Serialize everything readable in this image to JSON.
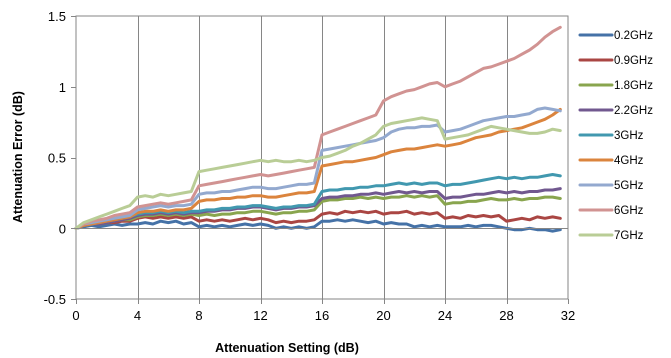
{
  "chart_data": {
    "type": "line",
    "xlabel": "Attenuation Setting (dB)",
    "ylabel": "Attenuation Error (dB)",
    "xlim": [
      0,
      32
    ],
    "ylim": [
      -0.5,
      1.5
    ],
    "xticks": [
      0,
      4,
      8,
      12,
      16,
      20,
      24,
      28,
      32
    ],
    "yticks": [
      -0.5,
      0,
      0.5,
      1,
      1.5
    ],
    "ytick_labels": [
      "-0.5",
      "0",
      "0.5",
      "1",
      "1.5"
    ],
    "grid": "vertical major gridlines",
    "legend": "right",
    "x": [
      0,
      0.5,
      1,
      1.5,
      2,
      2.5,
      3,
      3.5,
      4,
      4.5,
      5,
      5.5,
      6,
      6.5,
      7,
      7.5,
      8,
      8.5,
      9,
      9.5,
      10,
      10.5,
      11,
      11.5,
      12,
      12.5,
      13,
      13.5,
      14,
      14.5,
      15,
      15.5,
      16,
      16.5,
      17,
      17.5,
      18,
      18.5,
      19,
      19.5,
      20,
      20.5,
      21,
      21.5,
      22,
      22.5,
      23,
      23.5,
      24,
      24.5,
      25,
      25.5,
      26,
      26.5,
      27,
      27.5,
      28,
      28.5,
      29,
      29.5,
      30,
      30.5,
      31,
      31.5
    ],
    "series": [
      {
        "name": "0.2GHz",
        "color": "#4572A7",
        "values": [
          0,
          0.01,
          0.02,
          0.01,
          0.02,
          0.03,
          0.02,
          0.03,
          0.03,
          0.04,
          0.03,
          0.05,
          0.04,
          0.05,
          0.03,
          0.04,
          0.01,
          0.02,
          0.01,
          0.02,
          0.01,
          0.02,
          0.03,
          0.02,
          0.03,
          0.02,
          0,
          0.01,
          0,
          0.01,
          0,
          0.01,
          0.05,
          0.05,
          0.06,
          0.05,
          0.06,
          0.05,
          0.04,
          0.05,
          0.03,
          0.04,
          0.03,
          0.03,
          0.01,
          0.02,
          0.01,
          0.02,
          0.01,
          0.01,
          0.01,
          0.02,
          0.01,
          0.02,
          0.02,
          0.01,
          0,
          -0.01,
          -0.01,
          0,
          -0.01,
          -0.01,
          -0.02,
          -0.01
        ]
      },
      {
        "name": "0.9GHz",
        "color": "#AA4643",
        "values": [
          0,
          0.02,
          0.03,
          0.03,
          0.04,
          0.04,
          0.05,
          0.05,
          0.07,
          0.08,
          0.07,
          0.08,
          0.07,
          0.08,
          0.07,
          0.08,
          0.05,
          0.06,
          0.05,
          0.06,
          0.05,
          0.06,
          0.07,
          0.06,
          0.07,
          0.06,
          0.04,
          0.05,
          0.04,
          0.05,
          0.05,
          0.06,
          0.1,
          0.11,
          0.1,
          0.12,
          0.11,
          0.12,
          0.11,
          0.12,
          0.1,
          0.11,
          0.11,
          0.12,
          0.1,
          0.11,
          0.1,
          0.11,
          0.07,
          0.08,
          0.07,
          0.09,
          0.08,
          0.09,
          0.08,
          0.09,
          0.05,
          0.06,
          0.07,
          0.06,
          0.08,
          0.07,
          0.08,
          0.07
        ]
      },
      {
        "name": "1.8GHz",
        "color": "#89A54E",
        "values": [
          0,
          0.02,
          0.03,
          0.03,
          0.04,
          0.05,
          0.06,
          0.06,
          0.08,
          0.09,
          0.09,
          0.1,
          0.09,
          0.1,
          0.09,
          0.1,
          0.09,
          0.1,
          0.09,
          0.1,
          0.1,
          0.11,
          0.11,
          0.12,
          0.12,
          0.11,
          0.1,
          0.11,
          0.11,
          0.12,
          0.12,
          0.13,
          0.19,
          0.2,
          0.2,
          0.21,
          0.21,
          0.22,
          0.21,
          0.22,
          0.21,
          0.22,
          0.22,
          0.23,
          0.22,
          0.23,
          0.22,
          0.23,
          0.17,
          0.18,
          0.18,
          0.19,
          0.19,
          0.2,
          0.21,
          0.2,
          0.2,
          0.21,
          0.2,
          0.21,
          0.21,
          0.22,
          0.22,
          0.21
        ]
      },
      {
        "name": "2.2GHz",
        "color": "#71588F",
        "values": [
          0,
          0.02,
          0.03,
          0.03,
          0.04,
          0.05,
          0.06,
          0.07,
          0.09,
          0.1,
          0.1,
          0.11,
          0.1,
          0.11,
          0.1,
          0.11,
          0.11,
          0.12,
          0.12,
          0.13,
          0.13,
          0.14,
          0.14,
          0.15,
          0.15,
          0.14,
          0.13,
          0.14,
          0.14,
          0.15,
          0.15,
          0.16,
          0.21,
          0.22,
          0.22,
          0.23,
          0.23,
          0.24,
          0.24,
          0.25,
          0.24,
          0.25,
          0.26,
          0.25,
          0.26,
          0.25,
          0.26,
          0.26,
          0.21,
          0.22,
          0.22,
          0.23,
          0.24,
          0.24,
          0.25,
          0.26,
          0.25,
          0.26,
          0.25,
          0.26,
          0.26,
          0.27,
          0.27,
          0.28
        ]
      },
      {
        "name": "3GHz",
        "color": "#4198AF",
        "values": [
          0,
          0.02,
          0.03,
          0.04,
          0.05,
          0.06,
          0.07,
          0.08,
          0.1,
          0.11,
          0.11,
          0.12,
          0.11,
          0.12,
          0.11,
          0.12,
          0.12,
          0.13,
          0.13,
          0.14,
          0.14,
          0.15,
          0.15,
          0.16,
          0.16,
          0.15,
          0.14,
          0.15,
          0.15,
          0.16,
          0.16,
          0.17,
          0.26,
          0.27,
          0.27,
          0.28,
          0.28,
          0.29,
          0.29,
          0.3,
          0.3,
          0.31,
          0.32,
          0.31,
          0.32,
          0.31,
          0.32,
          0.32,
          0.3,
          0.31,
          0.31,
          0.32,
          0.33,
          0.34,
          0.35,
          0.36,
          0.35,
          0.36,
          0.35,
          0.36,
          0.36,
          0.37,
          0.38,
          0.37
        ]
      },
      {
        "name": "4GHz",
        "color": "#DB843D",
        "values": [
          0,
          0.02,
          0.03,
          0.04,
          0.05,
          0.06,
          0.07,
          0.08,
          0.11,
          0.12,
          0.12,
          0.13,
          0.12,
          0.13,
          0.13,
          0.14,
          0.19,
          0.2,
          0.2,
          0.21,
          0.21,
          0.22,
          0.22,
          0.23,
          0.23,
          0.22,
          0.22,
          0.23,
          0.24,
          0.25,
          0.25,
          0.26,
          0.44,
          0.45,
          0.46,
          0.47,
          0.47,
          0.48,
          0.49,
          0.5,
          0.52,
          0.54,
          0.55,
          0.56,
          0.56,
          0.57,
          0.58,
          0.59,
          0.58,
          0.59,
          0.6,
          0.62,
          0.64,
          0.65,
          0.66,
          0.68,
          0.69,
          0.7,
          0.71,
          0.73,
          0.75,
          0.77,
          0.8,
          0.84
        ]
      },
      {
        "name": "5GHz",
        "color": "#93A9CF",
        "values": [
          0,
          0.03,
          0.04,
          0.05,
          0.06,
          0.07,
          0.08,
          0.09,
          0.13,
          0.14,
          0.15,
          0.16,
          0.15,
          0.16,
          0.16,
          0.17,
          0.24,
          0.25,
          0.25,
          0.26,
          0.26,
          0.27,
          0.28,
          0.29,
          0.29,
          0.28,
          0.28,
          0.29,
          0.3,
          0.31,
          0.31,
          0.32,
          0.55,
          0.56,
          0.57,
          0.58,
          0.59,
          0.6,
          0.61,
          0.62,
          0.64,
          0.68,
          0.7,
          0.71,
          0.71,
          0.72,
          0.72,
          0.73,
          0.68,
          0.69,
          0.7,
          0.72,
          0.74,
          0.76,
          0.77,
          0.78,
          0.79,
          0.79,
          0.8,
          0.81,
          0.84,
          0.85,
          0.84,
          0.83
        ]
      },
      {
        "name": "6GHz",
        "color": "#D19392",
        "values": [
          0,
          0.03,
          0.05,
          0.06,
          0.07,
          0.09,
          0.1,
          0.11,
          0.15,
          0.16,
          0.17,
          0.18,
          0.17,
          0.18,
          0.19,
          0.2,
          0.3,
          0.31,
          0.32,
          0.33,
          0.34,
          0.35,
          0.36,
          0.37,
          0.38,
          0.37,
          0.38,
          0.39,
          0.4,
          0.41,
          0.42,
          0.43,
          0.66,
          0.68,
          0.7,
          0.72,
          0.74,
          0.76,
          0.78,
          0.8,
          0.9,
          0.93,
          0.95,
          0.97,
          0.98,
          1,
          1.02,
          1.03,
          1,
          1.02,
          1.04,
          1.07,
          1.1,
          1.13,
          1.14,
          1.16,
          1.18,
          1.2,
          1.23,
          1.26,
          1.3,
          1.35,
          1.39,
          1.42
        ]
      },
      {
        "name": "7GHz",
        "color": "#B9CD96",
        "values": [
          0,
          0.04,
          0.06,
          0.08,
          0.1,
          0.12,
          0.14,
          0.16,
          0.22,
          0.23,
          0.22,
          0.24,
          0.23,
          0.24,
          0.25,
          0.26,
          0.4,
          0.41,
          0.42,
          0.43,
          0.44,
          0.45,
          0.46,
          0.47,
          0.48,
          0.47,
          0.48,
          0.47,
          0.47,
          0.48,
          0.47,
          0.48,
          0.5,
          0.51,
          0.53,
          0.55,
          0.58,
          0.6,
          0.63,
          0.66,
          0.72,
          0.74,
          0.75,
          0.76,
          0.77,
          0.78,
          0.77,
          0.76,
          0.63,
          0.64,
          0.65,
          0.66,
          0.68,
          0.7,
          0.72,
          0.71,
          0.7,
          0.69,
          0.68,
          0.67,
          0.67,
          0.68,
          0.7,
          0.69
        ]
      }
    ]
  }
}
